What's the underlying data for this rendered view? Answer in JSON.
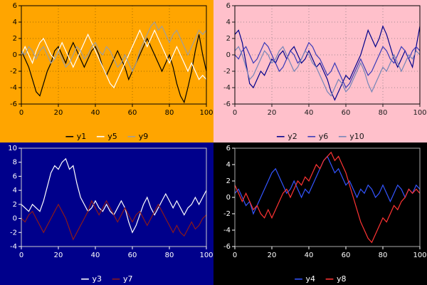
{
  "chart_data": [
    {
      "type": "line",
      "panel": "top-left",
      "bg": "#FFA500",
      "fg": "#000000",
      "frame": "#000000",
      "grid": true,
      "grid_color": "#A56A00",
      "xlim": [
        0,
        100
      ],
      "ylim": [
        -6,
        6
      ],
      "xticks": [
        0,
        20,
        40,
        60,
        80,
        100
      ],
      "yticks": [
        -6,
        -4,
        -2,
        0,
        2,
        4,
        6
      ],
      "series": [
        {
          "name": "y1",
          "color": "#000000",
          "values": [
            0.5,
            -0.5,
            -1.5,
            -3.0,
            -4.5,
            -5.0,
            -3.5,
            -2.0,
            -1.0,
            0.5,
            1.0,
            0.0,
            -1.0,
            0.5,
            1.5,
            0.5,
            -0.5,
            -1.5,
            -0.5,
            0.5,
            1.0,
            0.0,
            -1.5,
            -2.5,
            -1.5,
            -0.5,
            0.5,
            -0.5,
            -1.5,
            -3.0,
            -2.0,
            -1.0,
            0.0,
            1.0,
            2.0,
            1.0,
            0.0,
            -1.0,
            -2.0,
            -1.0,
            0.0,
            -1.5,
            -3.5,
            -5.0,
            -5.8,
            -4.0,
            -2.0,
            0.5,
            2.5,
            0.0,
            -2.0
          ]
        },
        {
          "name": "y5",
          "color": "#FFFFFF",
          "values": [
            0.0,
            1.0,
            0.0,
            -1.0,
            0.5,
            1.5,
            2.0,
            1.0,
            0.0,
            -0.5,
            0.5,
            1.5,
            0.5,
            -0.5,
            -1.5,
            -0.5,
            0.5,
            1.5,
            2.5,
            1.5,
            0.5,
            -0.5,
            -1.5,
            -2.5,
            -3.5,
            -4.0,
            -3.0,
            -2.0,
            -1.0,
            0.0,
            1.0,
            2.0,
            3.0,
            2.0,
            1.0,
            2.0,
            3.0,
            2.0,
            1.0,
            0.0,
            -1.0,
            0.0,
            1.0,
            0.0,
            -1.0,
            -2.0,
            -1.0,
            -2.0,
            -3.0,
            -2.5,
            -3.0
          ]
        },
        {
          "name": "y9",
          "color": "#9E9E9E",
          "values": [
            0.5,
            0.0,
            1.0,
            0.5,
            -0.5,
            0.5,
            1.0,
            0.0,
            -1.0,
            -0.5,
            0.5,
            -0.5,
            -1.5,
            -1.0,
            0.0,
            1.0,
            0.5,
            -0.5,
            0.0,
            1.0,
            1.5,
            0.5,
            0.0,
            1.0,
            0.5,
            -0.5,
            -1.5,
            -1.0,
            0.0,
            -1.0,
            -2.0,
            -1.0,
            0.5,
            1.5,
            2.5,
            3.5,
            4.0,
            3.0,
            3.5,
            2.5,
            1.5,
            2.5,
            3.0,
            2.0,
            1.0,
            0.0,
            1.0,
            2.0,
            3.0,
            2.5,
            3.0
          ]
        }
      ]
    },
    {
      "type": "line",
      "panel": "top-right",
      "bg": "#FFC0CB",
      "fg": "#1A1A1A",
      "frame": "#000000",
      "grid": true,
      "grid_color": "#A58A92",
      "xlim": [
        0,
        100
      ],
      "ylim": [
        -6,
        6
      ],
      "xticks": [
        0,
        20,
        40,
        60,
        80,
        100
      ],
      "yticks": [
        -6,
        -4,
        -2,
        0,
        2,
        4,
        6
      ],
      "series": [
        {
          "name": "y2",
          "color": "#00008B",
          "values": [
            2.5,
            3.0,
            1.5,
            -1.0,
            -3.5,
            -4.0,
            -3.0,
            -2.0,
            -2.5,
            -1.5,
            -0.5,
            -1.0,
            0.0,
            0.5,
            -0.5,
            0.5,
            1.0,
            0.0,
            -1.0,
            -0.5,
            0.5,
            -0.5,
            -1.5,
            -1.0,
            -2.0,
            -3.0,
            -4.5,
            -5.5,
            -4.5,
            -3.5,
            -2.5,
            -3.0,
            -2.0,
            -1.0,
            0.0,
            1.5,
            3.0,
            2.0,
            1.0,
            2.0,
            3.5,
            2.5,
            1.0,
            -0.5,
            -1.5,
            -0.5,
            0.5,
            -0.5,
            -1.5,
            1.0,
            3.5
          ]
        },
        {
          "name": "y6",
          "color": "#3A3AB8",
          "values": [
            0.0,
            -0.5,
            0.5,
            1.0,
            0.0,
            -1.0,
            -0.5,
            0.5,
            1.5,
            1.0,
            0.0,
            -1.0,
            -2.0,
            -1.5,
            -0.5,
            0.5,
            0.0,
            -1.0,
            -0.5,
            0.5,
            1.5,
            1.0,
            0.0,
            -0.5,
            -1.5,
            -2.5,
            -2.0,
            -1.0,
            -2.0,
            -3.0,
            -4.0,
            -3.5,
            -2.5,
            -1.5,
            -0.5,
            -1.5,
            -2.5,
            -2.0,
            -1.0,
            0.0,
            1.0,
            0.5,
            -0.5,
            -1.0,
            0.0,
            1.0,
            0.5,
            -0.5,
            0.5,
            1.0,
            0.5
          ]
        },
        {
          "name": "y10",
          "color": "#7585B8",
          "values": [
            0.5,
            1.0,
            0.0,
            -1.5,
            -3.0,
            -2.5,
            -1.5,
            -0.5,
            0.5,
            0.0,
            -1.0,
            -0.5,
            0.5,
            1.0,
            0.0,
            -1.0,
            -2.0,
            -1.5,
            -0.5,
            0.5,
            0.0,
            -1.0,
            -1.5,
            -2.5,
            -3.5,
            -4.5,
            -5.0,
            -4.0,
            -3.0,
            -3.5,
            -4.5,
            -4.0,
            -3.0,
            -2.0,
            -1.0,
            -2.0,
            -3.5,
            -4.5,
            -3.5,
            -2.5,
            -1.5,
            -2.0,
            -1.0,
            0.0,
            -1.0,
            -2.0,
            -1.0,
            0.0,
            -0.5,
            0.5,
            0.0
          ]
        }
      ]
    },
    {
      "type": "line",
      "panel": "bottom-left",
      "bg": "#00008B",
      "fg": "#FFFFFF",
      "frame": "#CCCCCC",
      "grid": false,
      "grid_color": "#2A2AA5",
      "xlim": [
        0,
        100
      ],
      "ylim": [
        -4,
        10
      ],
      "xticks": [
        0,
        20,
        40,
        60,
        80,
        100
      ],
      "yticks": [
        -4,
        -2,
        0,
        2,
        4,
        6,
        8,
        10
      ],
      "series": [
        {
          "name": "y3",
          "color": "#FFFFFF",
          "values": [
            2.0,
            1.5,
            1.0,
            2.0,
            1.5,
            1.0,
            2.5,
            4.5,
            6.5,
            7.5,
            7.0,
            8.0,
            8.5,
            7.0,
            7.5,
            5.0,
            3.0,
            2.0,
            1.0,
            1.5,
            2.5,
            1.5,
            1.0,
            2.0,
            1.0,
            0.5,
            1.5,
            2.5,
            1.5,
            -0.5,
            -2.0,
            -1.0,
            0.5,
            2.0,
            3.0,
            1.5,
            0.5,
            1.5,
            2.5,
            3.5,
            2.5,
            1.5,
            2.5,
            1.5,
            0.5,
            1.5,
            2.0,
            3.0,
            2.0,
            3.0,
            4.0
          ]
        },
        {
          "name": "y7",
          "color": "#8B1A1A",
          "values": [
            0.0,
            -0.5,
            0.5,
            1.0,
            0.0,
            -1.0,
            -2.0,
            -1.0,
            0.0,
            1.0,
            2.0,
            1.0,
            0.0,
            -1.5,
            -3.0,
            -2.0,
            -1.0,
            0.0,
            1.0,
            2.5,
            1.5,
            0.5,
            1.5,
            2.5,
            1.5,
            0.5,
            -0.5,
            0.5,
            1.5,
            0.5,
            -0.5,
            0.5,
            1.0,
            0.0,
            -1.0,
            0.0,
            1.0,
            2.0,
            1.0,
            0.0,
            -1.0,
            -2.0,
            -1.0,
            -2.0,
            -2.5,
            -1.5,
            -0.5,
            -1.5,
            -1.0,
            0.0,
            0.5
          ]
        }
      ]
    },
    {
      "type": "line",
      "panel": "bottom-right",
      "bg": "#000000",
      "fg": "#FFFFFF",
      "frame": "#AAAAAA",
      "grid": false,
      "grid_color": "#333333",
      "xlim": [
        0,
        100
      ],
      "ylim": [
        -6,
        6
      ],
      "xticks": [
        0,
        20,
        40,
        60,
        80,
        100
      ],
      "yticks": [
        -6,
        -4,
        -2,
        0,
        2,
        4,
        6
      ],
      "series": [
        {
          "name": "y4",
          "color": "#3355FF",
          "values": [
            0.5,
            1.0,
            0.0,
            -1.0,
            -0.5,
            -2.0,
            -1.0,
            0.0,
            1.0,
            2.0,
            3.0,
            3.5,
            2.5,
            1.5,
            0.5,
            1.0,
            2.0,
            1.0,
            0.0,
            1.0,
            0.5,
            1.5,
            2.5,
            3.5,
            4.5,
            5.0,
            4.0,
            3.0,
            3.5,
            2.5,
            1.5,
            2.0,
            1.0,
            0.0,
            1.0,
            0.5,
            1.5,
            1.0,
            0.0,
            0.5,
            1.5,
            0.5,
            -0.5,
            0.5,
            1.5,
            1.0,
            0.0,
            1.0,
            0.5,
            1.5,
            1.0
          ]
        },
        {
          "name": "y8",
          "color": "#FF3333",
          "values": [
            1.5,
            0.5,
            -0.5,
            0.5,
            -0.5,
            -1.5,
            -1.0,
            -2.0,
            -2.5,
            -1.5,
            -2.5,
            -1.5,
            -0.5,
            0.5,
            1.0,
            0.0,
            1.0,
            2.0,
            1.5,
            2.5,
            2.0,
            3.0,
            4.0,
            3.5,
            4.5,
            5.0,
            5.5,
            4.5,
            5.0,
            4.0,
            3.0,
            1.5,
            0.0,
            -1.5,
            -3.0,
            -4.0,
            -5.0,
            -5.5,
            -4.5,
            -3.5,
            -2.5,
            -3.0,
            -2.0,
            -1.0,
            -1.5,
            -0.5,
            0.0,
            1.0,
            0.5,
            1.0,
            0.5
          ]
        }
      ]
    }
  ]
}
